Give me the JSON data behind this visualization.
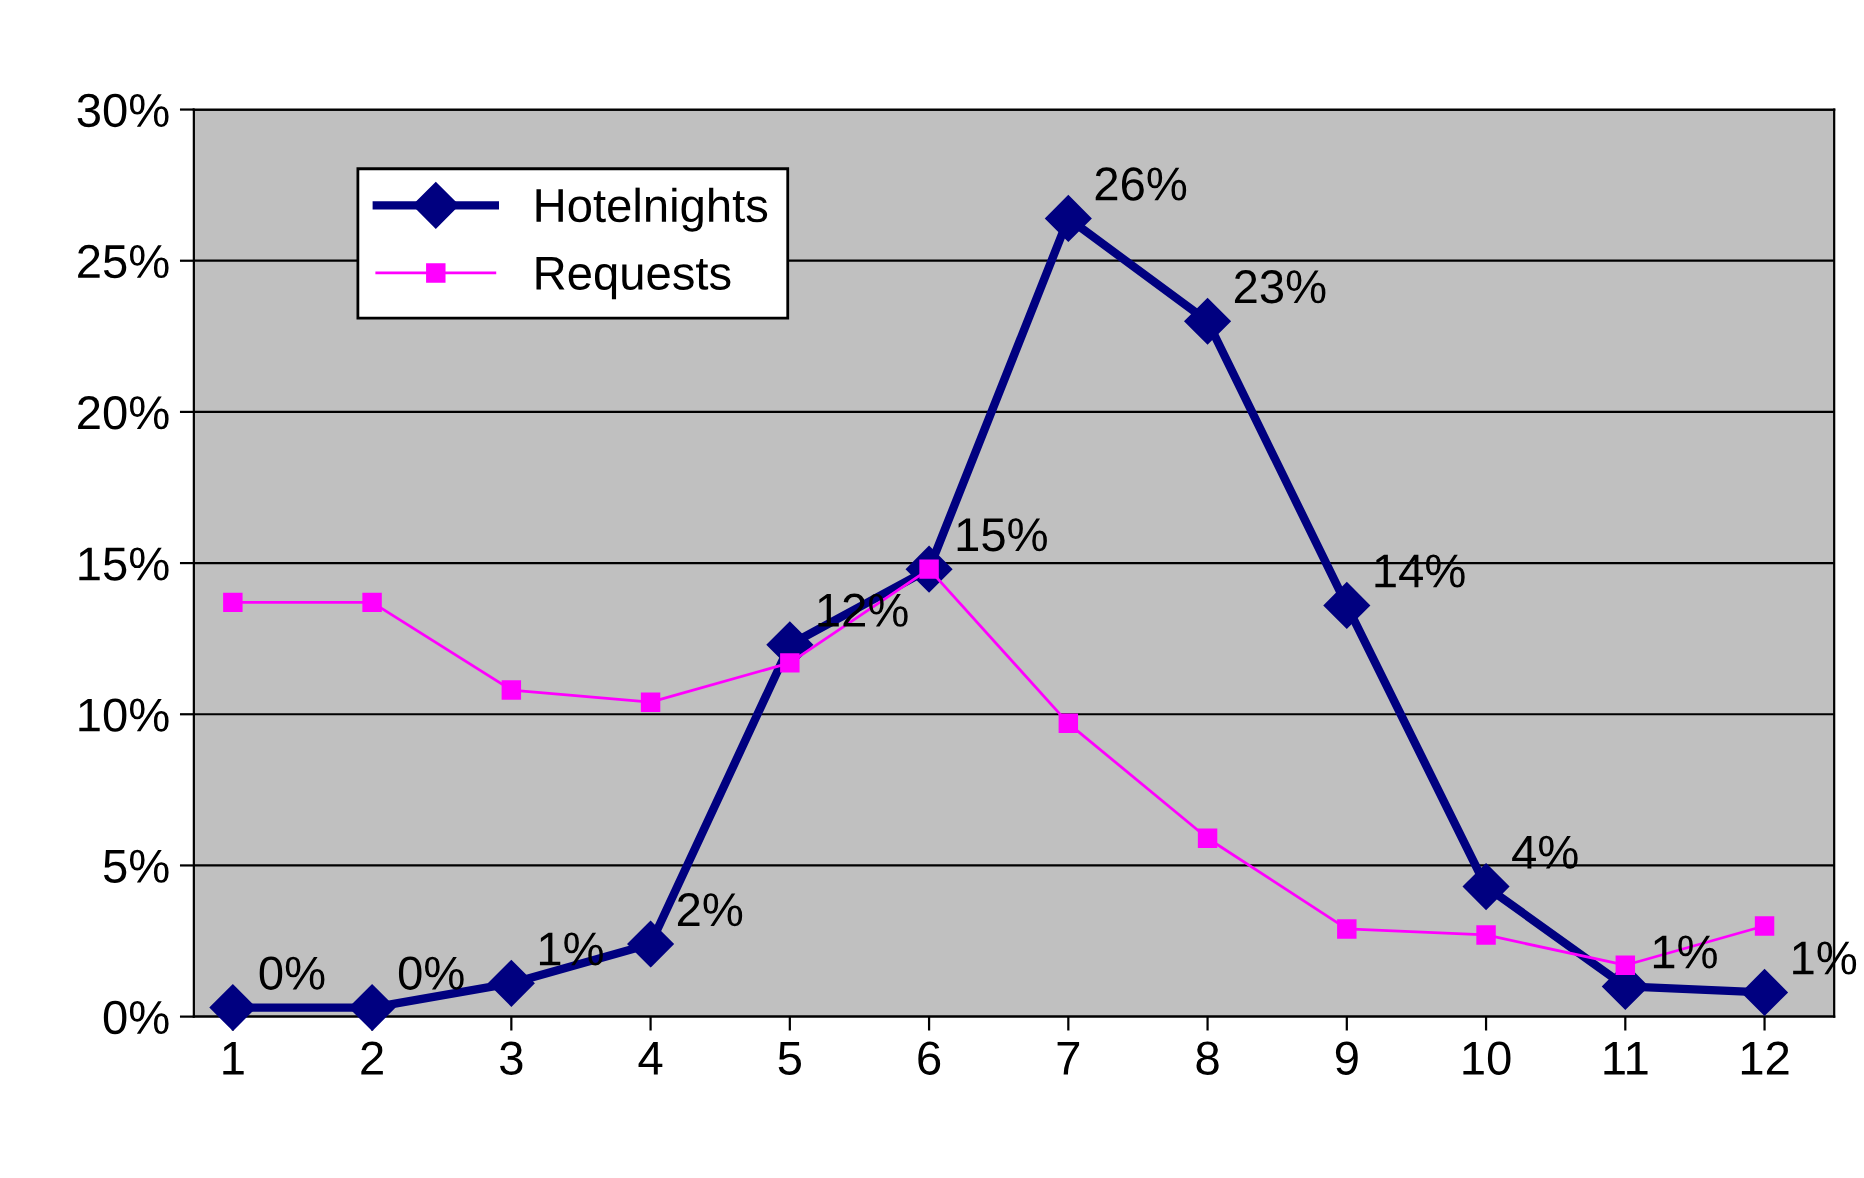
{
  "chart_data": {
    "type": "line",
    "categories": [
      "1",
      "2",
      "3",
      "4",
      "5",
      "6",
      "7",
      "8",
      "9",
      "10",
      "11",
      "12"
    ],
    "series": [
      {
        "name": "Hotelnights",
        "color": "#000080",
        "marker": "diamond",
        "values": [
          0.3,
          0.3,
          1.1,
          2.4,
          12.3,
          14.8,
          26.4,
          23.0,
          13.6,
          4.3,
          1.0,
          0.8
        ],
        "value_labels": [
          "0%",
          "0%",
          "1%",
          "2%",
          "12%",
          "15%",
          "26%",
          "23%",
          "14%",
          "4%",
          "1%",
          "1%"
        ]
      },
      {
        "name": "Requests",
        "color": "#ff00ff",
        "marker": "square",
        "values": [
          13.7,
          13.7,
          10.8,
          10.4,
          11.7,
          14.8,
          9.7,
          5.9,
          2.9,
          2.7,
          1.7,
          3.0
        ]
      }
    ],
    "ylim": [
      0,
      30
    ],
    "yticks": [
      {
        "value": 0,
        "label": "0%"
      },
      {
        "value": 5,
        "label": "5%"
      },
      {
        "value": 10,
        "label": "10%"
      },
      {
        "value": 15,
        "label": "15%"
      },
      {
        "value": 20,
        "label": "20%"
      },
      {
        "value": 25,
        "label": "25%"
      },
      {
        "value": 30,
        "label": "30%"
      }
    ],
    "grid": "y",
    "legend": "top left",
    "line_style": "solid"
  }
}
